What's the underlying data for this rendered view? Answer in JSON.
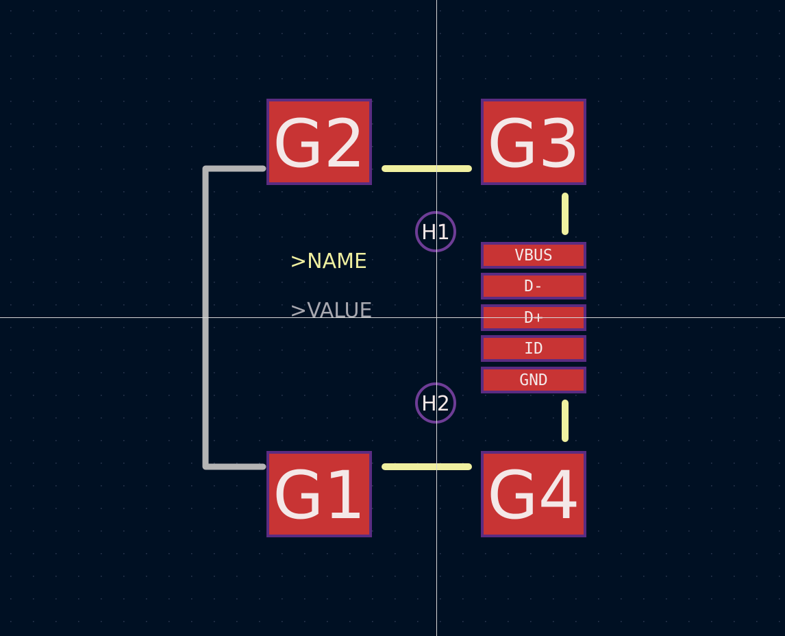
{
  "editor": {
    "view": "footprint-editor-canvas",
    "background_color": "#001023",
    "grid_dot_color": "#2a3750",
    "crosshair_color": "#d8d8d8"
  },
  "colors": {
    "pad_fill": "#c83434",
    "pad_outline": "#5b2c82",
    "pad_text": "#f4e8e8",
    "silkscreen_yellow": "#f0f0a0",
    "fab_gray": "#b4b4b4",
    "value_gray": "#a8a8b0",
    "hole_ring": "#6e3d96"
  },
  "pads": {
    "g1": "G1",
    "g2": "G2",
    "g3": "G3",
    "g4": "G4",
    "vbus": "VBUS",
    "dminus": "D-",
    "dplus": "D+",
    "id": "ID",
    "gnd": "GND"
  },
  "holes": {
    "h1": "H1",
    "h2": "H2"
  },
  "labels": {
    "name": ">NAME",
    "value": ">VALUE"
  }
}
